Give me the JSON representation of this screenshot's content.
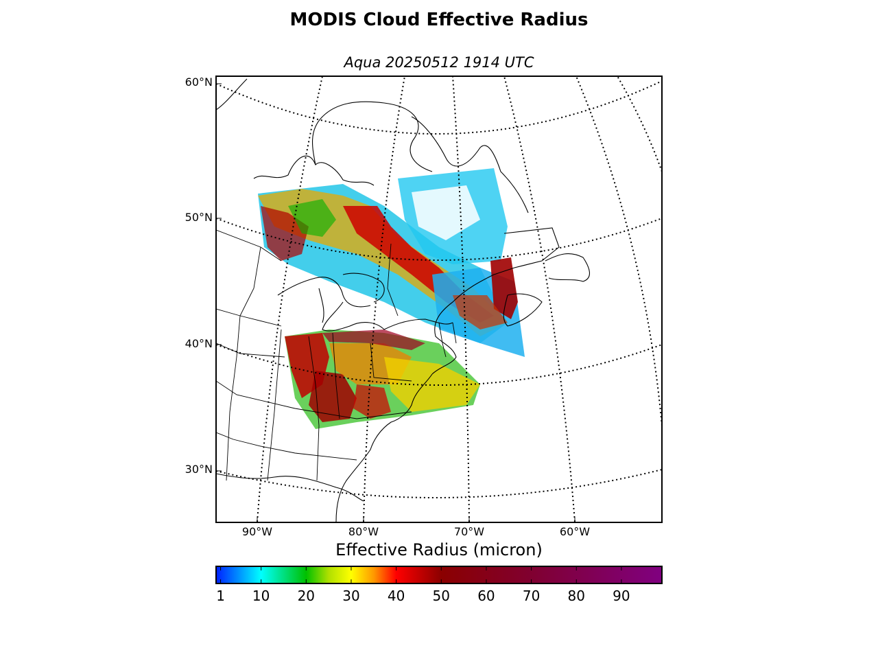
{
  "title": "MODIS Cloud Effective Radius",
  "subtitle": "Aqua 20250512 1914 UTC",
  "map": {
    "projection": "lambert-conformal",
    "latitude_labels": [
      "60°N",
      "50°N",
      "40°N",
      "30°N"
    ],
    "longitude_labels": [
      "90°W",
      "80°W",
      "70°W",
      "60°W"
    ],
    "graticule_style": "dotted",
    "coastline_color": "#000000"
  },
  "colorbar": {
    "title": "Effective Radius (micron)",
    "tick_labels": [
      "1",
      "10",
      "20",
      "30",
      "40",
      "50",
      "60",
      "70",
      "80",
      "90"
    ],
    "tick_values": [
      1,
      10,
      20,
      30,
      40,
      50,
      60,
      70,
      80,
      90
    ],
    "range": [
      0,
      99
    ],
    "stops": [
      {
        "v": 0,
        "c": "#0020ff"
      },
      {
        "v": 10,
        "c": "#00ffff"
      },
      {
        "v": 20,
        "c": "#00c000"
      },
      {
        "v": 25,
        "c": "#b0e000"
      },
      {
        "v": 30,
        "c": "#ffff00"
      },
      {
        "v": 35,
        "c": "#ff9900"
      },
      {
        "v": 40,
        "c": "#ff0000"
      },
      {
        "v": 50,
        "c": "#8b0000"
      },
      {
        "v": 70,
        "c": "#800030"
      },
      {
        "v": 99,
        "c": "#800080"
      }
    ]
  }
}
